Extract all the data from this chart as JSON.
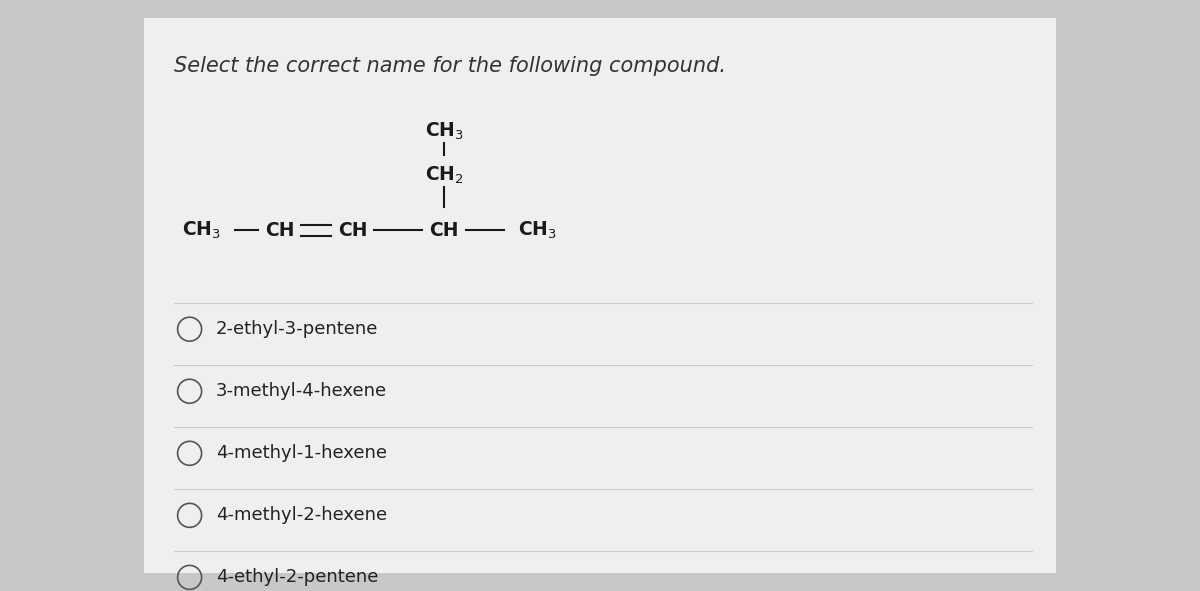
{
  "title": "Select the correct name for the following compound.",
  "title_fontsize": 15,
  "title_color": "#333333",
  "background_color": "#c8c8c8",
  "card_color": "#f0efef",
  "structure_color": "#1a1a1a",
  "structure_fontsize": 13.5,
  "options": [
    "2-ethyl-3-pentene",
    "3-methyl-4-hexene",
    "4-methyl-1-hexene",
    "4-methyl-2-hexene",
    "4-ethyl-2-pentene"
  ],
  "option_fontsize": 13,
  "option_color": "#222222",
  "circle_color": "#555555",
  "separator_color": "#cccccc",
  "separator_lw": 0.8
}
